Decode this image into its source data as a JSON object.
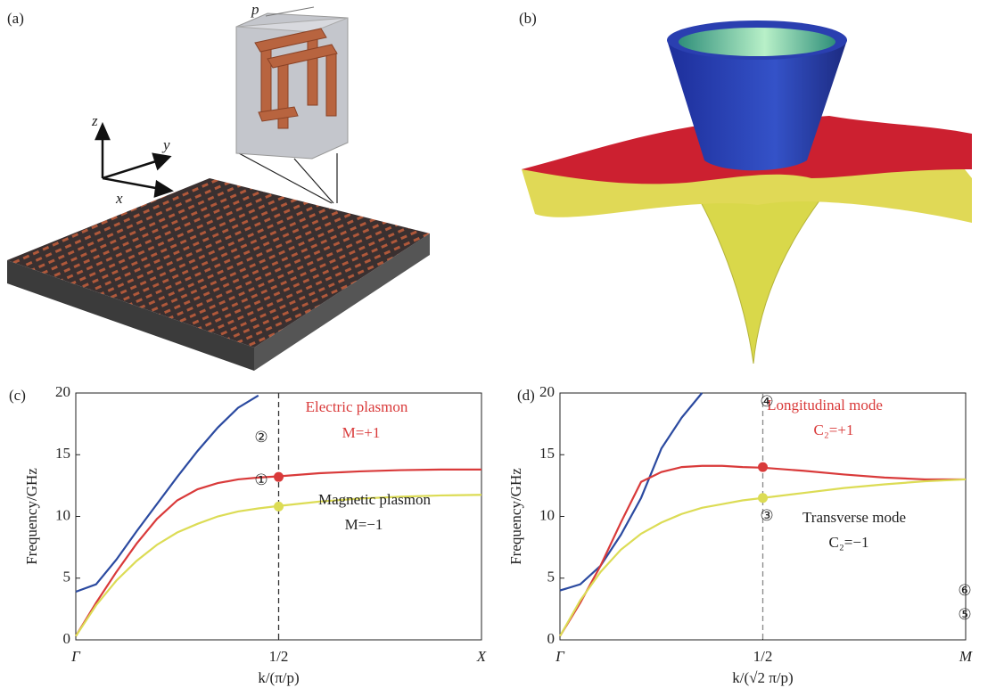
{
  "panels": {
    "a": {
      "label": "(a)",
      "period": "p",
      "axes": [
        "z",
        "y",
        "x"
      ]
    },
    "b": {
      "label": "(b)"
    }
  },
  "chart_data": [
    {
      "type": "line",
      "label": "(c)",
      "ylabel": "Frequency/GHz",
      "xlabel": "k/(π/p)",
      "x": [
        0,
        0.05,
        0.1,
        0.15,
        0.2,
        0.25,
        0.3,
        0.35,
        0.4,
        0.45,
        0.5,
        0.6,
        0.7,
        0.8,
        0.9,
        1.0
      ],
      "xlim": [
        0,
        1
      ],
      "xticks": [
        {
          "value": 0,
          "label": "Γ"
        },
        {
          "value": 0.5,
          "label": "1/2"
        },
        {
          "value": 1,
          "label": "X"
        }
      ],
      "ylim": [
        0,
        20
      ],
      "yticks": [
        0,
        5,
        10,
        15,
        20
      ],
      "vline": 0.5,
      "vline_color": "#333333",
      "series": [
        {
          "color": "#2b4aa0",
          "values": [
            3.9,
            4.5,
            6.5,
            8.8,
            11,
            13.2,
            15.3,
            17.2,
            18.8,
            19.8,
            null,
            null,
            null,
            null,
            null,
            null
          ]
        },
        {
          "color": "#d93a3a",
          "values": [
            0.3,
            3,
            5.5,
            7.8,
            9.8,
            11.3,
            12.2,
            12.7,
            13.0,
            13.15,
            13.25,
            13.5,
            13.65,
            13.75,
            13.8,
            13.8
          ]
        },
        {
          "color": "#dcdc55",
          "values": [
            0.3,
            2.8,
            4.8,
            6.4,
            7.7,
            8.7,
            9.4,
            10,
            10.4,
            10.65,
            10.85,
            11.2,
            11.45,
            11.6,
            11.7,
            11.75
          ]
        }
      ],
      "markers": [
        {
          "x": 0.5,
          "y": 13.2,
          "color": "#d93a3a"
        },
        {
          "x": 0.5,
          "y": 10.8,
          "color": "#dcdc55"
        }
      ],
      "annotations": [
        {
          "text": "Electric plasmon",
          "color": "#d93a3a"
        },
        {
          "text": "M=+1",
          "color": "#d93a3a"
        },
        {
          "text": "②",
          "color": "#222222"
        },
        {
          "text": "①",
          "color": "#222222"
        },
        {
          "text": "Magnetic plasmon",
          "color": "#222222"
        },
        {
          "text": "M=−1",
          "color": "#222222"
        }
      ]
    },
    {
      "type": "line",
      "label": "(d)",
      "ylabel": "Frequency/GHz",
      "xlabel": "k/(√2 π/p)",
      "x": [
        0,
        0.05,
        0.1,
        0.15,
        0.2,
        0.25,
        0.3,
        0.35,
        0.4,
        0.45,
        0.5,
        0.6,
        0.7,
        0.8,
        0.9,
        1.0
      ],
      "xlim": [
        0,
        1
      ],
      "xticks": [
        {
          "value": 0,
          "label": "Γ"
        },
        {
          "value": 0.5,
          "label": "1/2"
        },
        {
          "value": 1,
          "label": "M"
        }
      ],
      "ylim": [
        0,
        20
      ],
      "yticks": [
        0,
        5,
        10,
        15,
        20
      ],
      "vline": 0.5,
      "vline_color": "#888888",
      "series": [
        {
          "color": "#2b4aa0",
          "values": [
            4.0,
            4.5,
            6,
            8.5,
            11.5,
            15.5,
            18,
            20,
            null,
            null,
            null,
            null,
            null,
            null,
            null,
            null
          ]
        },
        {
          "color": "#d93a3a",
          "values": [
            0.3,
            3,
            6,
            9.5,
            12.8,
            13.6,
            14,
            14.1,
            14.1,
            14,
            13.95,
            13.7,
            13.4,
            13.15,
            13,
            13
          ]
        },
        {
          "color": "#dcdc55",
          "values": [
            0.3,
            3.2,
            5.5,
            7.3,
            8.6,
            9.5,
            10.2,
            10.7,
            11,
            11.3,
            11.5,
            11.9,
            12.3,
            12.6,
            12.85,
            13
          ]
        }
      ],
      "markers": [
        {
          "x": 0.5,
          "y": 14,
          "color": "#d93a3a"
        },
        {
          "x": 0.5,
          "y": 11.5,
          "color": "#dcdc55"
        }
      ],
      "annotations": [
        {
          "text": "Longitudinal mode",
          "color": "#d93a3a"
        },
        {
          "text": "C₂=+1",
          "color": "#d93a3a"
        },
        {
          "text": "④",
          "color": "#222222"
        },
        {
          "text": "③",
          "color": "#222222"
        },
        {
          "text": "⑥",
          "color": "#222222"
        },
        {
          "text": "⑤",
          "color": "#222222"
        },
        {
          "text": "Transverse mode",
          "color": "#222222"
        },
        {
          "text": "C₂=−1",
          "color": "#222222"
        }
      ]
    }
  ]
}
